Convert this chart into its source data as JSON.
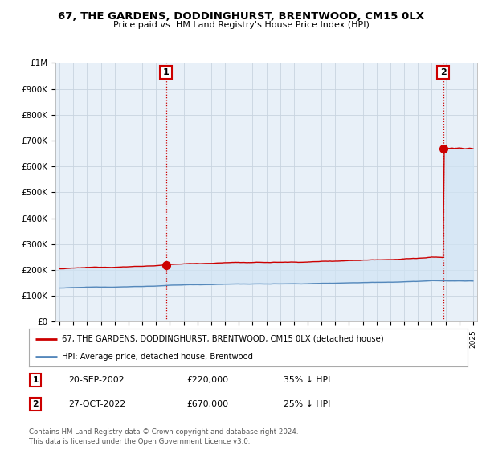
{
  "title": "67, THE GARDENS, DODDINGHURST, BRENTWOOD, CM15 0LX",
  "subtitle": "Price paid vs. HM Land Registry's House Price Index (HPI)",
  "legend_label_red": "67, THE GARDENS, DODDINGHURST, BRENTWOOD, CM15 0LX (detached house)",
  "legend_label_blue": "HPI: Average price, detached house, Brentwood",
  "annotation1_date": "20-SEP-2002",
  "annotation1_price": "£220,000",
  "annotation1_hpi": "35% ↓ HPI",
  "annotation1_year": 2002.72,
  "annotation1_value": 220000,
  "annotation2_date": "27-OCT-2022",
  "annotation2_price": "£670,000",
  "annotation2_hpi": "25% ↓ HPI",
  "annotation2_year": 2022.83,
  "annotation2_value": 670000,
  "footer1": "Contains HM Land Registry data © Crown copyright and database right 2024.",
  "footer2": "This data is licensed under the Open Government Licence v3.0.",
  "ylim": [
    0,
    1000000
  ],
  "yticks": [
    0,
    100000,
    200000,
    300000,
    400000,
    500000,
    600000,
    700000,
    800000,
    900000,
    1000000
  ],
  "ytick_labels": [
    "£0",
    "£100K",
    "£200K",
    "£300K",
    "£400K",
    "£500K",
    "£600K",
    "£700K",
    "£800K",
    "£900K",
    "£1M"
  ],
  "bg_color": "#ffffff",
  "plot_bg_color": "#e8f0f8",
  "grid_color": "#c8d4e0",
  "red_color": "#cc0000",
  "blue_color": "#5588bb",
  "fill_color": "#d0e4f4"
}
